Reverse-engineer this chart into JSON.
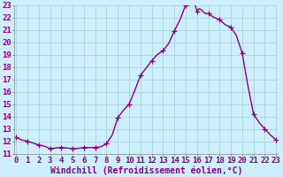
{
  "title": "",
  "xlabel": "Windchill (Refroidissement éolien,°C)",
  "background_color": "#cceeff",
  "line_color": "#880088",
  "marker_color": "#880088",
  "xlim": [
    0,
    23
  ],
  "ylim": [
    11,
    23
  ],
  "yticks": [
    11,
    12,
    13,
    14,
    15,
    16,
    17,
    18,
    19,
    20,
    21,
    22,
    23
  ],
  "xticks": [
    0,
    1,
    2,
    3,
    4,
    5,
    6,
    7,
    8,
    9,
    10,
    11,
    12,
    13,
    14,
    15,
    16,
    17,
    18,
    19,
    20,
    21,
    22,
    23
  ],
  "hours": [
    0,
    0.5,
    1,
    1.5,
    2,
    2.5,
    3,
    3.5,
    4,
    4.5,
    5,
    5.5,
    6,
    6.5,
    7,
    7.5,
    8,
    8.5,
    9,
    9.5,
    10,
    10.5,
    11,
    11.5,
    12,
    12.5,
    13,
    13.5,
    14,
    14.5,
    15,
    15.2,
    15.4,
    15.6,
    15.8,
    16,
    16.2,
    16.4,
    16.6,
    16.8,
    17,
    17.5,
    18,
    18.5,
    19,
    19.5,
    20,
    20.5,
    21,
    21.5,
    22,
    22.5,
    23
  ],
  "values": [
    12.3,
    12.1,
    12.0,
    11.85,
    11.7,
    11.6,
    11.4,
    11.45,
    11.5,
    11.45,
    11.4,
    11.42,
    11.5,
    11.48,
    11.5,
    11.55,
    11.8,
    12.5,
    13.9,
    14.5,
    15.0,
    16.1,
    17.3,
    17.9,
    18.5,
    19.0,
    19.3,
    19.9,
    20.9,
    21.8,
    23.0,
    23.2,
    23.35,
    23.25,
    23.1,
    22.5,
    22.7,
    22.6,
    22.4,
    22.3,
    22.3,
    22.0,
    21.8,
    21.4,
    21.2,
    20.5,
    19.1,
    16.5,
    14.2,
    13.5,
    13.0,
    12.5,
    12.1
  ],
  "marker_hours": [
    0,
    1,
    2,
    3,
    4,
    5,
    6,
    7,
    8,
    9,
    10,
    11,
    12,
    13,
    14,
    15,
    16,
    17,
    18,
    19,
    20,
    21,
    22,
    23
  ],
  "marker_values": [
    12.3,
    12.0,
    11.7,
    11.4,
    11.5,
    11.4,
    11.5,
    11.5,
    11.8,
    13.9,
    15.0,
    17.3,
    18.5,
    19.3,
    20.9,
    23.0,
    22.5,
    22.3,
    21.8,
    21.2,
    19.1,
    14.2,
    13.0,
    12.1
  ],
  "grid_color": "#aad4d4",
  "xlabel_color": "#880088",
  "xlabel_fontsize": 7,
  "tick_label_color": "#880088",
  "tick_fontsize": 6.5,
  "line_width": 1.0,
  "marker_size": 4
}
